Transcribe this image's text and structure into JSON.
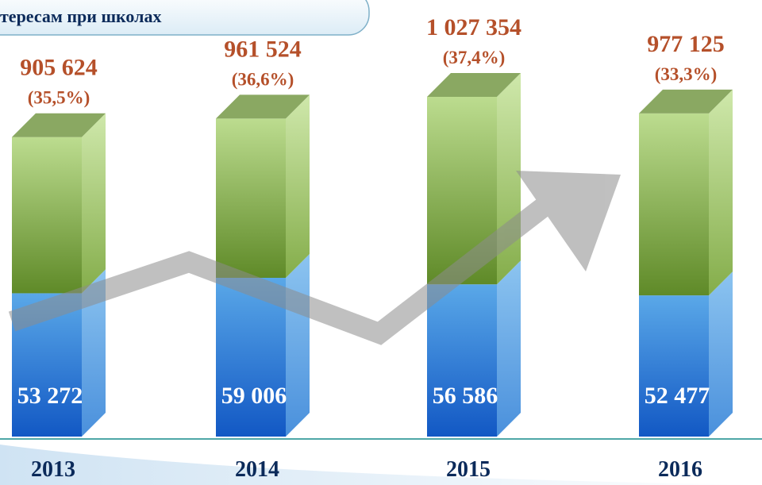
{
  "chart_data": {
    "type": "bar3d",
    "title": "тересам при школах",
    "categories": [
      "2013",
      "2014",
      "2015",
      "2016"
    ],
    "values": [
      905624,
      961524,
      1027354,
      977125
    ],
    "value_labels": [
      "905 624",
      "961 524",
      "1 027 354",
      "977 125"
    ],
    "shares": [
      35.5,
      36.6,
      37.4,
      33.3
    ],
    "share_labels": [
      "(35,5%)",
      "(36,6%)",
      "(37,4%)",
      "(33,3%)"
    ],
    "base_values": [
      53272,
      59006,
      56586,
      52477
    ],
    "base_value_labels": [
      "53 272",
      "59 006",
      "56 586",
      "52 477"
    ],
    "color": "#7ea63e",
    "base_color": "#2f7fd8",
    "label_color": "#b5502a"
  }
}
